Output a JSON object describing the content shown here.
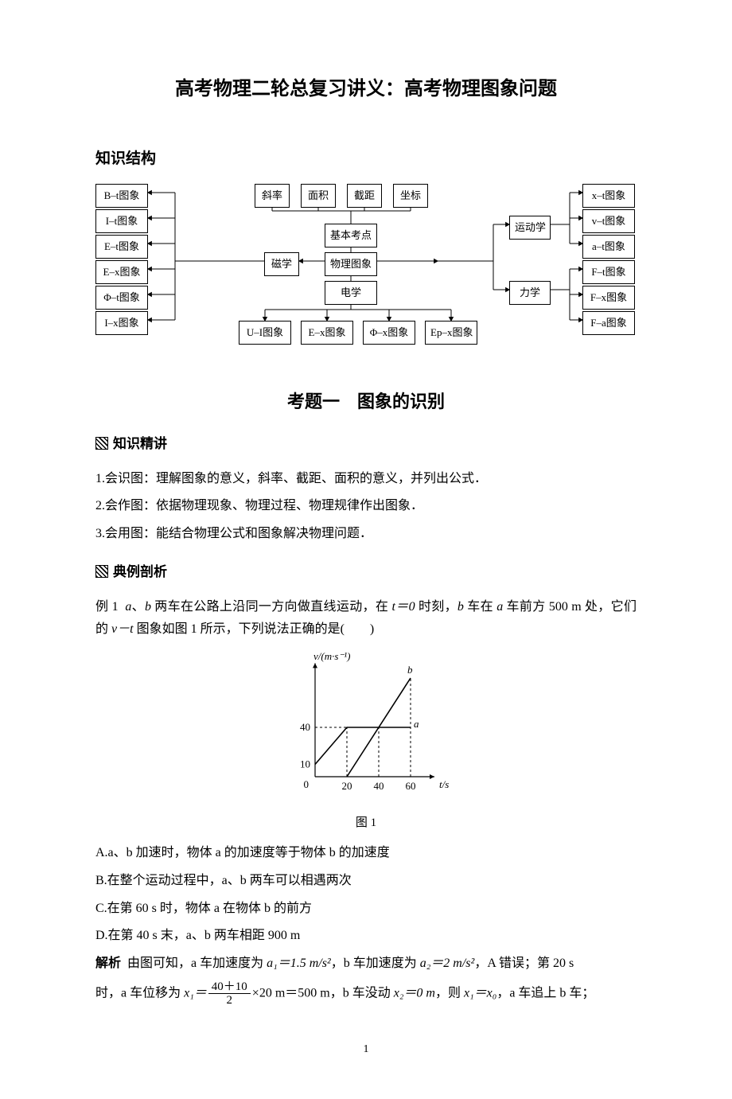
{
  "title_main": "高考物理二轮总复习讲义：高考物理图象问题",
  "section_knowledge": "知识结构",
  "concept_map": {
    "left_col": [
      "B–t图象",
      "I–t图象",
      "E–t图象",
      "E–x图象",
      "Φ–t图象",
      "I–x图象"
    ],
    "top_row": [
      "斜率",
      "面积",
      "截距",
      "坐标"
    ],
    "center": {
      "jiben": "基本考点",
      "cixue": "磁学",
      "wuli": "物理图象",
      "dianxue": "电学"
    },
    "bottom_row": [
      "U–I图象",
      "E–x图象",
      "Φ–x图象",
      "Ep–x图象"
    ],
    "right_mid": [
      "运动学",
      "力学"
    ],
    "right_col": [
      "x–t图象",
      "v–t图象",
      "a–t图象",
      "F–t图象",
      "F–x图象",
      "F–a图象"
    ],
    "box_border": "#000000",
    "line_color": "#000000",
    "font_size": 13
  },
  "topic_title": "考题一 图象的识别",
  "sub1": "知识精讲",
  "knowledge_points": [
    "1.会识图：理解图象的意义，斜率、截距、面积的意义，并列出公式．",
    "2.会作图：依据物理现象、物理过程、物理规律作出图象．",
    "3.会用图：能结合物理公式和图象解决物理问题．"
  ],
  "sub2": "典例剖析",
  "example1": {
    "label": "例 1",
    "stem_pre": "a、b 两车在公路上沿同一方向做直线运动，在 ",
    "t0": "t＝0 ",
    "stem_mid": "时刻，b 车在 a 车前方 500 m 处，它们的 ",
    "vt": "v－t ",
    "stem_post": "图象如图 1 所示，下列说法正确的是(  )"
  },
  "vt_chart": {
    "type": "line",
    "x_label": "t/s",
    "y_label": "v/(m·s⁻¹)",
    "series": [
      {
        "name": "a",
        "points": [
          [
            0,
            10
          ],
          [
            20,
            40
          ],
          [
            60,
            40
          ]
        ],
        "label_at": [
          62,
          40
        ]
      },
      {
        "name": "b",
        "points": [
          [
            20,
            0
          ],
          [
            60,
            80
          ]
        ],
        "label_at": [
          58,
          84
        ]
      }
    ],
    "y_ticks": [
      10,
      40
    ],
    "x_ticks": [
      20,
      40,
      60
    ],
    "dash_lines": [
      {
        "from": [
          0,
          40
        ],
        "to": [
          60,
          40
        ]
      },
      {
        "from": [
          20,
          0
        ],
        "to": [
          20,
          40
        ]
      },
      {
        "from": [
          40,
          0
        ],
        "to": [
          40,
          40
        ]
      },
      {
        "from": [
          60,
          0
        ],
        "to": [
          60,
          80
        ]
      }
    ],
    "axis_color": "#000000",
    "line_color": "#000000",
    "dash_color": "#000000",
    "font_size": 13,
    "xlim": [
      0,
      70
    ],
    "ylim": [
      0,
      90
    ],
    "caption": "图 1"
  },
  "options": {
    "A": "A.a、b 加速时，物体 a 的加速度等于物体 b 的加速度",
    "B": "B.在整个运动过程中，a、b 两车可以相遇两次",
    "C": "C.在第 60 s 时，物体 a 在物体 b 的前方",
    "D": "D.在第 40 s 末，a、b 两车相距 900 m"
  },
  "analysis": {
    "label": "解析",
    "seg1_pre": "由图可知，a 车加速度为 ",
    "a1": "a₁＝1.5 m/s²",
    "seg1_mid": "，b 车加速度为 ",
    "a2": "a₂＝2 m/s²",
    "seg1_end": "，A 错误；第 20 s",
    "seg2_pre": "时，a 车位移为 ",
    "x1eq": "x₁＝",
    "frac_num": "40＋10",
    "frac_den": "2",
    "seg2_mid": "×20 m＝500 m，b 车没动 ",
    "x2": "x₂＝0 m",
    "seg2_mid2": "，则 ",
    "x1x0": "x₁＝x₀",
    "seg2_end": "，a 车追上 b 车；"
  },
  "page_number": "1"
}
